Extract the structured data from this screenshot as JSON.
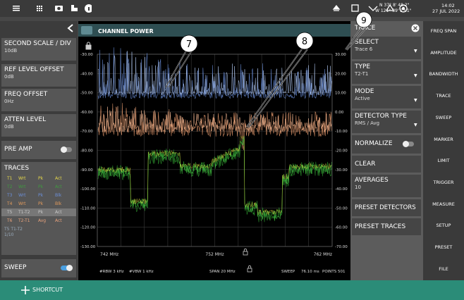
{
  "status_bar": {
    "latitude": "N 37° 8' 48.2\"",
    "longitude": "W 121° 39' 23.1\"",
    "time": "14:02",
    "date": "27 JUL 2022"
  },
  "left_panel": {
    "items": [
      {
        "label": "SECOND SCALE / DIV",
        "value": "10dB"
      },
      {
        "label": "REF LEVEL OFFSET",
        "value": "0dB"
      },
      {
        "label": "FREQ OFFSET",
        "value": "0Hz"
      },
      {
        "label": "ATTEN LEVEL",
        "value": "0dB"
      }
    ],
    "pre_amp": "PRE AMP",
    "traces": {
      "title": "TRACES",
      "rows": [
        [
          "T1",
          "Wrt",
          "Pk",
          "Act"
        ],
        [
          "T2",
          "Wrt",
          "Pk",
          "Act"
        ],
        [
          "T3",
          "Wrt",
          "Pk",
          "Blk"
        ],
        [
          "T4",
          "Wrt",
          "Pk",
          "Blk"
        ],
        [
          "T5",
          "T1-T2",
          "Pk",
          "Act"
        ],
        [
          "T6",
          "T2-T1",
          "Avg",
          "Act"
        ]
      ],
      "active": "T5 T1-T2",
      "count": "1/10"
    },
    "sweep": "SWEEP"
  },
  "measurement": {
    "title": "CHANNEL POWER",
    "left_axis": [
      "-30.00",
      "-40.00",
      "-50.00",
      "-60.00",
      "-70.00",
      "-80.00",
      "-90.00",
      "-100.00",
      "-110.00",
      "-120.00",
      "-130.00"
    ],
    "right_axis": [
      "30.00",
      "20.00",
      "10.00",
      "0.00",
      "-10.00",
      "-20.00",
      "-30.00",
      "-40.00",
      "-50.00",
      "-60.00",
      "-70.00"
    ],
    "x_axis": [
      "742 MHz",
      "752 MHz",
      "762 MHz"
    ],
    "settings": [
      "#RBW 3 kHz",
      "#VBW 1 kHz",
      "SPAN 20 MHz",
      "SWEEP",
      "76.10 ms",
      "POINTS 501"
    ]
  },
  "callouts": [
    "7",
    "8",
    "9"
  ],
  "trace_panel": {
    "title": "TRACE",
    "select": {
      "label": "SELECT",
      "value": "Trace 6"
    },
    "type": {
      "label": "TYPE",
      "value": "T2-T1"
    },
    "mode": {
      "label": "MODE",
      "value": "Active"
    },
    "detector": {
      "label": "DETECTOR TYPE",
      "value": "RMS / Avg"
    },
    "normalize": "NORMALIZE",
    "clear": "CLEAR",
    "averages": {
      "label": "AVERAGES",
      "value": "10"
    },
    "preset_detectors": "PRESET DETECTORS",
    "preset_traces": "PRESET TRACES"
  },
  "menu": [
    "FREQ SPAN",
    "AMPLITUDE",
    "BANDWIDTH",
    "TRACE",
    "SWEEP",
    "MARKER",
    "LIMIT",
    "TRIGGER",
    "MEASURE",
    "SETUP",
    "PRESET",
    "FILE"
  ],
  "bottom_bar": {
    "shortcut": "SHORTCUT"
  }
}
